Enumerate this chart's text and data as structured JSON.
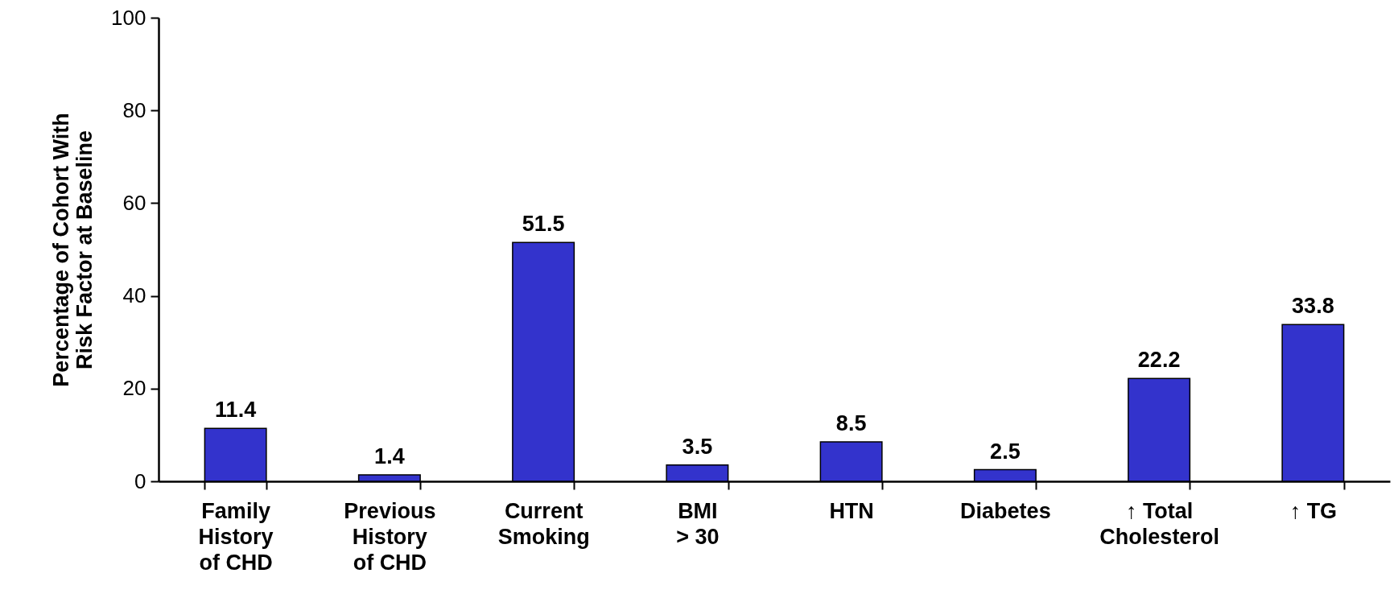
{
  "chart_data": {
    "type": "bar",
    "ylabel": "Percentage of Cohort With\nRisk Factor at Baseline",
    "categories": [
      "Family\nHistory\nof CHD",
      "Previous\nHistory\nof CHD",
      "Current\nSmoking",
      "BMI\n> 30",
      "HTN",
      "Diabetes",
      "↑ Total\nCholesterol",
      "↑ TG"
    ],
    "values": [
      11.4,
      1.4,
      51.5,
      3.5,
      8.5,
      2.5,
      22.2,
      33.8
    ],
    "color": "#3333cc",
    "ylim": [
      0,
      100
    ],
    "yticks": [
      0,
      20,
      40,
      60,
      80,
      100
    ],
    "grid": false,
    "data_labels": true
  }
}
